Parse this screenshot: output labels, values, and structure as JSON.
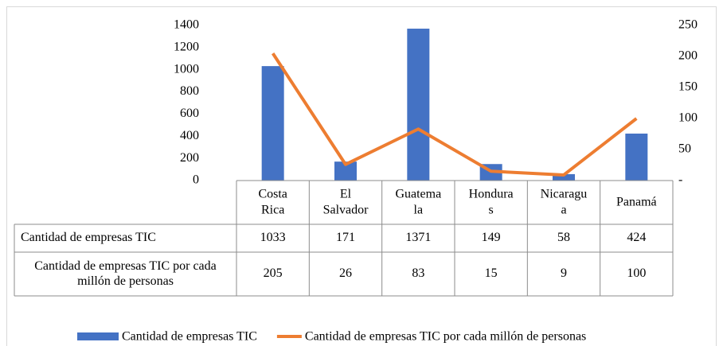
{
  "chart_data": {
    "type": "bar-line",
    "categories": [
      "Costa Rica",
      "El Salvador",
      "Guatemala",
      "Honduras",
      "Nicaragua",
      "Panamá"
    ],
    "series": [
      {
        "name": "Cantidad de empresas TIC",
        "type": "bar",
        "color": "#4472c4",
        "values": [
          1033,
          171,
          1371,
          149,
          58,
          424
        ]
      },
      {
        "name": "Cantidad de empresas TIC por cada millón de personas",
        "type": "line",
        "axis": "y2",
        "color": "#ed7d31",
        "values": [
          205,
          26,
          83,
          15,
          9,
          100
        ]
      }
    ],
    "ylim": [
      0,
      1400
    ],
    "yticks": [
      0,
      200,
      400,
      600,
      800,
      1000,
      1200,
      1400
    ],
    "y2lim": [
      0,
      250
    ],
    "y2ticks": [
      {
        "value": 0,
        "label": "-"
      },
      50,
      100,
      150,
      200,
      250
    ],
    "legend": "bottom",
    "data_table": true
  }
}
